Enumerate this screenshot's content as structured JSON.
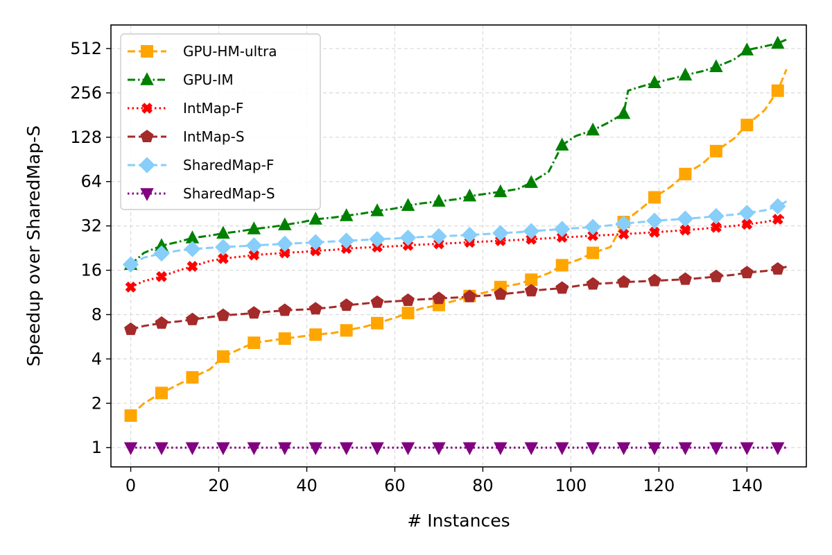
{
  "chart_data": {
    "type": "line",
    "title": "",
    "xlabel": "# Instances",
    "ylabel": "Speedup over SharedMap-S",
    "xlim": [
      -4.5,
      153.5
    ],
    "ylim": [
      0.74,
      740
    ],
    "y_scale": "log2",
    "x_ticks": [
      0,
      20,
      40,
      60,
      80,
      100,
      120,
      140
    ],
    "y_ticks": [
      1,
      2,
      4,
      8,
      16,
      32,
      64,
      128,
      256,
      512
    ],
    "y_tick_labels": [
      "1",
      "2",
      "4",
      "8",
      "16",
      "32",
      "64",
      "128",
      "256",
      "512"
    ],
    "grid": true,
    "legend_position": "upper-left",
    "series": [
      {
        "name": "GPU-HM-ultra",
        "color": "#FFA500",
        "line_style": "dashed",
        "marker": "square",
        "points": [
          [
            0,
            1.65
          ],
          [
            3,
            2.0
          ],
          [
            7,
            2.35
          ],
          [
            11,
            2.7
          ],
          [
            14,
            3.0
          ],
          [
            18,
            3.4
          ],
          [
            21,
            4.15
          ],
          [
            25,
            4.7
          ],
          [
            28,
            5.15
          ],
          [
            32,
            5.35
          ],
          [
            35,
            5.5
          ],
          [
            39,
            5.7
          ],
          [
            42,
            5.85
          ],
          [
            46,
            6.0
          ],
          [
            49,
            6.25
          ],
          [
            53,
            6.6
          ],
          [
            56,
            7.0
          ],
          [
            60,
            7.6
          ],
          [
            63,
            8.2
          ],
          [
            66,
            8.8
          ],
          [
            70,
            9.3
          ],
          [
            74,
            10.0
          ],
          [
            77,
            10.7
          ],
          [
            81,
            11.4
          ],
          [
            84,
            12.3
          ],
          [
            88,
            12.9
          ],
          [
            91,
            13.8
          ],
          [
            95,
            15.3
          ],
          [
            98,
            17.3
          ],
          [
            102,
            19.0
          ],
          [
            105,
            21.0
          ],
          [
            109,
            23.0
          ],
          [
            112,
            34.0
          ],
          [
            116,
            42.0
          ],
          [
            119,
            50.0
          ],
          [
            123,
            60.0
          ],
          [
            126,
            72.0
          ],
          [
            130,
            85.0
          ],
          [
            133,
            103.0
          ],
          [
            137,
            125.0
          ],
          [
            140,
            155.0
          ],
          [
            144,
            195.0
          ],
          [
            147,
            265.0
          ],
          [
            149,
            370.0
          ]
        ]
      },
      {
        "name": "GPU-IM",
        "color": "#008000",
        "line_style": "dashdot",
        "marker": "triangle-up",
        "points": [
          [
            0,
            17.5
          ],
          [
            3,
            21.0
          ],
          [
            7,
            23.5
          ],
          [
            11,
            25.0
          ],
          [
            14,
            26.5
          ],
          [
            18,
            27.5
          ],
          [
            21,
            28.5
          ],
          [
            25,
            29.5
          ],
          [
            28,
            30.5
          ],
          [
            32,
            31.5
          ],
          [
            35,
            32.5
          ],
          [
            39,
            34.0
          ],
          [
            42,
            35.5
          ],
          [
            46,
            36.5
          ],
          [
            49,
            37.5
          ],
          [
            53,
            39.0
          ],
          [
            56,
            40.5
          ],
          [
            60,
            42.0
          ],
          [
            63,
            44.0
          ],
          [
            66,
            45.5
          ],
          [
            70,
            47.0
          ],
          [
            74,
            48.5
          ],
          [
            77,
            51.0
          ],
          [
            81,
            53.0
          ],
          [
            84,
            54.5
          ],
          [
            88,
            57.0
          ],
          [
            91,
            63.0
          ],
          [
            95,
            75.0
          ],
          [
            98,
            113.0
          ],
          [
            101,
            130.0
          ],
          [
            105,
            143.0
          ],
          [
            108,
            158.0
          ],
          [
            112,
            185.0
          ],
          [
            113,
            265.0
          ],
          [
            116,
            283.0
          ],
          [
            119,
            300.0
          ],
          [
            123,
            320.0
          ],
          [
            126,
            338.0
          ],
          [
            130,
            360.0
          ],
          [
            133,
            385.0
          ],
          [
            137,
            430.0
          ],
          [
            140,
            500.0
          ],
          [
            144,
            530.0
          ],
          [
            147,
            555.0
          ],
          [
            149,
            590.0
          ]
        ]
      },
      {
        "name": "IntMap-F",
        "color": "#FF0000",
        "line_style": "dotted",
        "marker": "x",
        "points": [
          [
            0,
            12.3
          ],
          [
            3,
            13.5
          ],
          [
            7,
            14.5
          ],
          [
            11,
            16.0
          ],
          [
            14,
            17.0
          ],
          [
            18,
            18.5
          ],
          [
            21,
            19.2
          ],
          [
            25,
            19.8
          ],
          [
            28,
            20.3
          ],
          [
            32,
            20.7
          ],
          [
            35,
            21.0
          ],
          [
            39,
            21.3
          ],
          [
            42,
            21.7
          ],
          [
            46,
            22.0
          ],
          [
            49,
            22.5
          ],
          [
            53,
            22.8
          ],
          [
            56,
            23.0
          ],
          [
            60,
            23.3
          ],
          [
            63,
            23.6
          ],
          [
            66,
            23.9
          ],
          [
            70,
            24.2
          ],
          [
            74,
            24.5
          ],
          [
            77,
            24.8
          ],
          [
            81,
            25.1
          ],
          [
            84,
            25.4
          ],
          [
            88,
            25.7
          ],
          [
            91,
            26.0
          ],
          [
            95,
            26.4
          ],
          [
            98,
            26.8
          ],
          [
            102,
            27.1
          ],
          [
            105,
            27.5
          ],
          [
            109,
            27.8
          ],
          [
            112,
            28.2
          ],
          [
            116,
            28.6
          ],
          [
            119,
            29.0
          ],
          [
            123,
            29.5
          ],
          [
            126,
            30.0
          ],
          [
            130,
            30.6
          ],
          [
            133,
            31.3
          ],
          [
            137,
            32.0
          ],
          [
            140,
            32.8
          ],
          [
            144,
            34.0
          ],
          [
            147,
            35.5
          ],
          [
            149,
            37.0
          ]
        ]
      },
      {
        "name": "IntMap-S",
        "color": "#A52A2A",
        "line_style": "dashed",
        "marker": "pentagon",
        "points": [
          [
            0,
            6.35
          ],
          [
            3,
            6.7
          ],
          [
            7,
            7.0
          ],
          [
            11,
            7.2
          ],
          [
            14,
            7.4
          ],
          [
            18,
            7.7
          ],
          [
            21,
            7.9
          ],
          [
            25,
            8.05
          ],
          [
            28,
            8.2
          ],
          [
            32,
            8.4
          ],
          [
            35,
            8.55
          ],
          [
            39,
            8.65
          ],
          [
            42,
            8.75
          ],
          [
            46,
            9.0
          ],
          [
            49,
            9.25
          ],
          [
            53,
            9.5
          ],
          [
            56,
            9.7
          ],
          [
            60,
            9.85
          ],
          [
            63,
            10.0
          ],
          [
            66,
            10.15
          ],
          [
            70,
            10.3
          ],
          [
            74,
            10.45
          ],
          [
            77,
            10.6
          ],
          [
            81,
            10.8
          ],
          [
            84,
            11.0
          ],
          [
            88,
            11.3
          ],
          [
            91,
            11.6
          ],
          [
            95,
            11.9
          ],
          [
            98,
            12.1
          ],
          [
            102,
            12.6
          ],
          [
            105,
            12.9
          ],
          [
            109,
            13.1
          ],
          [
            112,
            13.3
          ],
          [
            116,
            13.45
          ],
          [
            119,
            13.6
          ],
          [
            123,
            13.75
          ],
          [
            126,
            13.9
          ],
          [
            130,
            14.2
          ],
          [
            133,
            14.5
          ],
          [
            137,
            14.9
          ],
          [
            140,
            15.4
          ],
          [
            144,
            15.8
          ],
          [
            147,
            16.3
          ],
          [
            149,
            16.9
          ]
        ]
      },
      {
        "name": "SharedMap-F",
        "color": "#87CEFA",
        "line_style": "dashed",
        "marker": "diamond",
        "points": [
          [
            0,
            17.5
          ],
          [
            3,
            19.5
          ],
          [
            7,
            20.8
          ],
          [
            11,
            21.8
          ],
          [
            14,
            22.3
          ],
          [
            18,
            22.7
          ],
          [
            21,
            23.0
          ],
          [
            25,
            23.3
          ],
          [
            28,
            23.6
          ],
          [
            32,
            23.9
          ],
          [
            35,
            24.2
          ],
          [
            39,
            24.5
          ],
          [
            42,
            24.8
          ],
          [
            46,
            25.1
          ],
          [
            49,
            25.4
          ],
          [
            53,
            25.7
          ],
          [
            56,
            26.0
          ],
          [
            60,
            26.3
          ],
          [
            63,
            26.6
          ],
          [
            66,
            26.9
          ],
          [
            70,
            27.2
          ],
          [
            74,
            27.5
          ],
          [
            77,
            27.8
          ],
          [
            81,
            28.2
          ],
          [
            84,
            28.6
          ],
          [
            88,
            29.0
          ],
          [
            91,
            29.5
          ],
          [
            95,
            30.0
          ],
          [
            98,
            30.5
          ],
          [
            102,
            31.0
          ],
          [
            105,
            31.5
          ],
          [
            109,
            32.3
          ],
          [
            112,
            33.2
          ],
          [
            116,
            34.0
          ],
          [
            119,
            34.7
          ],
          [
            123,
            35.3
          ],
          [
            126,
            35.8
          ],
          [
            130,
            36.5
          ],
          [
            133,
            37.3
          ],
          [
            137,
            38.2
          ],
          [
            140,
            39.2
          ],
          [
            144,
            40.8
          ],
          [
            147,
            43.5
          ],
          [
            149,
            47.0
          ]
        ]
      },
      {
        "name": "SharedMap-S",
        "color": "#800080",
        "line_style": "dotted",
        "marker": "triangle-down",
        "points": [
          [
            0,
            1.0
          ],
          [
            7,
            1.0
          ],
          [
            14,
            1.0
          ],
          [
            21,
            1.0
          ],
          [
            28,
            1.0
          ],
          [
            35,
            1.0
          ],
          [
            42,
            1.0
          ],
          [
            49,
            1.0
          ],
          [
            56,
            1.0
          ],
          [
            63,
            1.0
          ],
          [
            70,
            1.0
          ],
          [
            77,
            1.0
          ],
          [
            84,
            1.0
          ],
          [
            91,
            1.0
          ],
          [
            98,
            1.0
          ],
          [
            105,
            1.0
          ],
          [
            112,
            1.0
          ],
          [
            119,
            1.0
          ],
          [
            126,
            1.0
          ],
          [
            133,
            1.0
          ],
          [
            140,
            1.0
          ],
          [
            147,
            1.0
          ],
          [
            149,
            1.0
          ]
        ]
      }
    ]
  }
}
